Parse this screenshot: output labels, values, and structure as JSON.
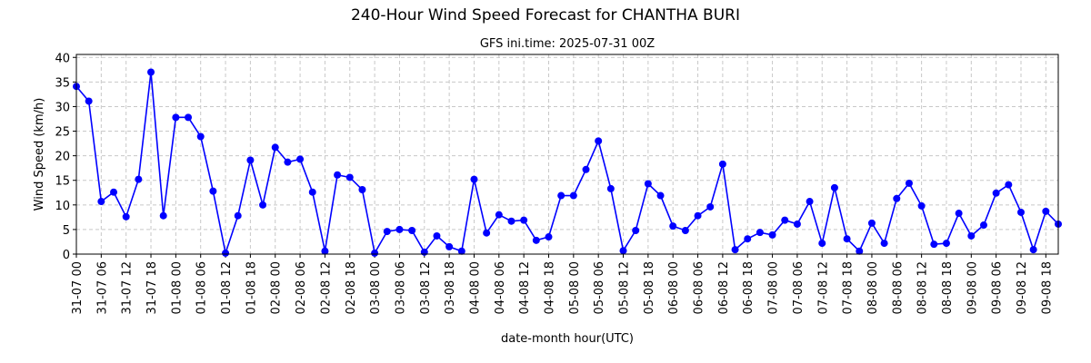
{
  "chart_data": {
    "type": "line",
    "title": "240-Hour Wind Speed Forecast for CHANTHA BURI",
    "subtitle": "GFS ini.time: 2025-07-31 00Z",
    "x_label": "date-month hour(UTC)",
    "y_label": "Wind Speed (km/h)",
    "categories": [
      "31-07 00",
      null,
      "31-07 06",
      null,
      "31-07 12",
      null,
      "31-07 18",
      null,
      "01-08 00",
      null,
      "01-08 06",
      null,
      "01-08 12",
      null,
      "01-08 18",
      null,
      "02-08 00",
      null,
      "02-08 06",
      null,
      "02-08 12",
      null,
      "02-08 18",
      null,
      "03-08 00",
      null,
      "03-08 06",
      null,
      "03-08 12",
      null,
      "03-08 18",
      null,
      "04-08 00",
      null,
      "04-08 06",
      null,
      "04-08 12",
      null,
      "04-08 18",
      null,
      "05-08 00",
      null,
      "05-08 06",
      null,
      "05-08 12",
      null,
      "05-08 18",
      null,
      "06-08 00",
      null,
      "06-08 06",
      null,
      "06-08 12",
      null,
      "06-08 18",
      null,
      "07-08 00",
      null,
      "07-08 06",
      null,
      "07-08 12",
      null,
      "07-08 18",
      null,
      "08-08 00",
      null,
      "08-08 06",
      null,
      "08-08 12",
      null,
      "08-08 18",
      null,
      "09-08 00",
      null,
      "09-08 06",
      null,
      "09-08 12",
      null,
      "09-08 18",
      null
    ],
    "values": [
      34.1,
      31.1,
      10.7,
      12.6,
      7.6,
      15.2,
      37.0,
      7.8,
      27.8,
      27.8,
      23.9,
      12.8,
      0.2,
      7.8,
      19.1,
      10.0,
      21.7,
      18.7,
      19.3,
      12.6,
      0.6,
      16.1,
      15.6,
      13.1,
      0.2,
      4.6,
      5.0,
      4.8,
      0.4,
      3.7,
      1.5,
      0.6,
      15.2,
      4.3,
      8.0,
      6.7,
      6.9,
      2.8,
      3.5,
      11.9,
      11.9,
      17.2,
      23.0,
      13.3,
      0.7,
      4.8,
      14.3,
      11.9,
      5.7,
      4.8,
      7.8,
      9.6,
      18.3,
      0.9,
      3.1,
      4.4,
      3.9,
      6.9,
      6.1,
      10.7,
      2.2,
      13.5,
      3.1,
      0.6,
      6.3,
      2.2,
      11.3,
      14.4,
      9.8,
      2.0,
      2.2,
      8.3,
      3.7,
      5.9,
      12.4,
      14.1,
      8.5,
      0.9,
      8.7,
      6.1
    ],
    "color": "#0000ff",
    "ylim": [
      0,
      40.6
    ],
    "yticks": [
      0,
      5,
      10,
      15,
      20,
      25,
      30,
      35,
      40
    ],
    "grid": true
  }
}
